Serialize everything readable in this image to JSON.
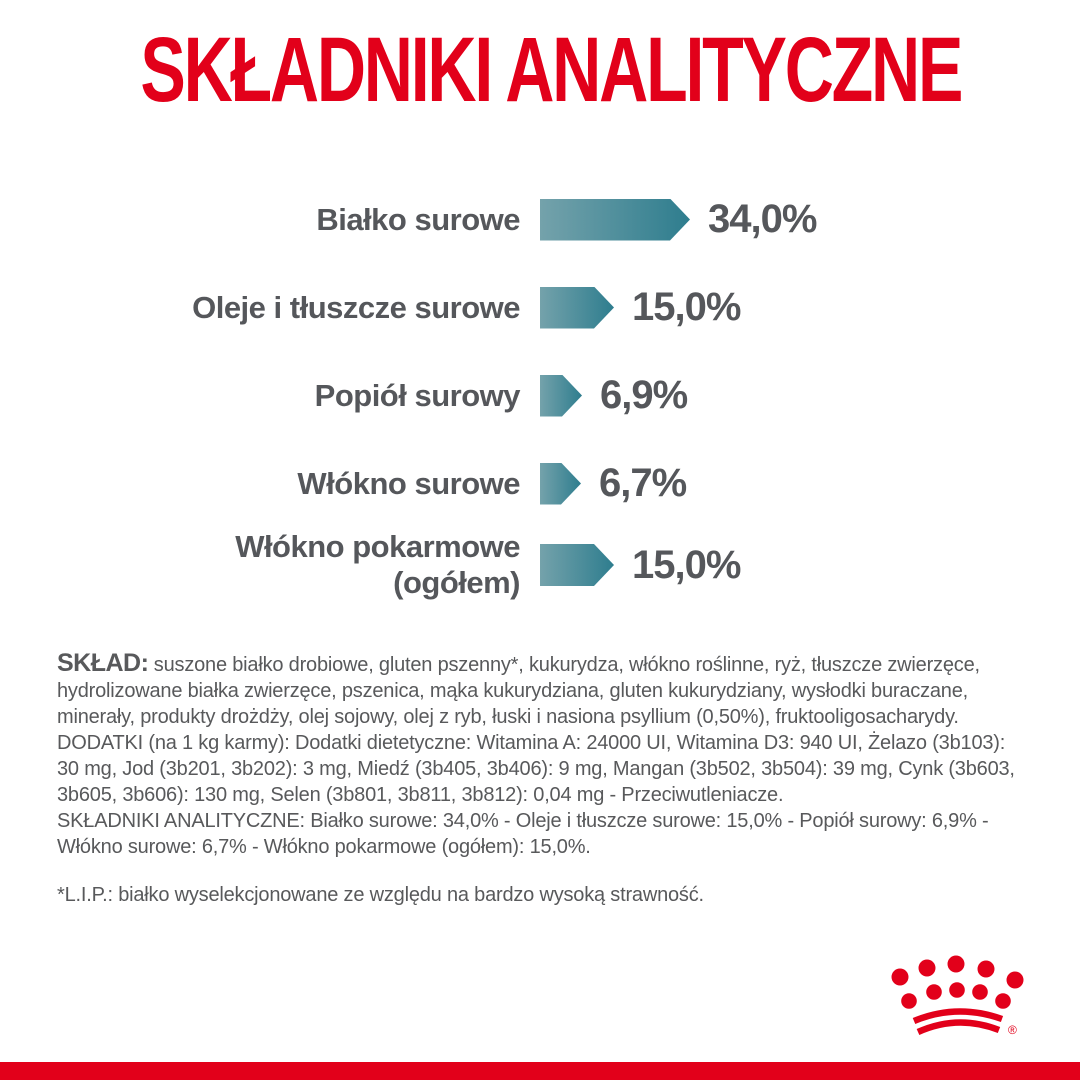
{
  "title": "SKŁADNIKI ANALITYCZNE",
  "chart_data": {
    "type": "bar",
    "orientation": "horizontal",
    "unit": "%",
    "xlim": [
      0,
      34
    ],
    "grid": false,
    "legend": "none",
    "bar_color_start": "#74A2AB",
    "bar_color_end": "#2E7D8E",
    "bars": [
      {
        "label": "Białko surowe",
        "label2": "",
        "value": 34.0,
        "display": "34,0%"
      },
      {
        "label": "Oleje i tłuszcze surowe",
        "label2": "",
        "value": 15.0,
        "display": "15,0%"
      },
      {
        "label": "Popiół surowy",
        "label2": "",
        "value": 6.9,
        "display": "6,9%"
      },
      {
        "label": "Włókno surowe",
        "label2": "",
        "value": 6.7,
        "display": "6,7%"
      },
      {
        "label": "Włókno pokarmowe",
        "label2": "(ogółem)",
        "value": 15.0,
        "display": "15,0%"
      }
    ]
  },
  "composition": {
    "sklad_label": "SKŁAD:",
    "sklad_text": " suszone białko drobiowe, gluten pszenny*, kukurydza, włókno roślinne, ryż, tłuszcze zwierzęce, hydrolizowane białka zwierzęce, pszenica, mąka kukurydziana, gluten kukurydziany, wysłodki buraczane, minerały, produkty drożdży, olej sojowy, olej z ryb, łuski i nasiona psyllium (0,50%), fruktooligosacharydy.",
    "dodatki_text": "DODATKI (na 1 kg karmy): Dodatki dietetyczne: Witamina A: 24000 UI, Witamina D3: 940 UI, Żelazo (3b103): 30 mg, Jod (3b201, 3b202): 3 mg, Miedź (3b405, 3b406): 9 mg, Mangan (3b502, 3b504): 39 mg, Cynk (3b603, 3b605, 3b606): 130 mg, Selen (3b801, 3b811, 3b812): 0,04 mg - Przeciwutleniacze.",
    "analityczne_text": "SKŁADNIKI ANALITYCZNE: Białko surowe: 34,0% - Oleje i tłuszcze surowe: 15,0% - Popiół surowy: 6,9% - Włókno surowe: 6,7% - Włókno pokarmowe (ogółem): 15,0%.",
    "lip_note": "*L.I.P.: białko wyselekcjonowane ze względu na bardzo wysoką strawność."
  },
  "branding": {
    "logo_name": "royal-canin-crown",
    "accent_red": "#E2001A",
    "text_gray": "#58595B"
  }
}
